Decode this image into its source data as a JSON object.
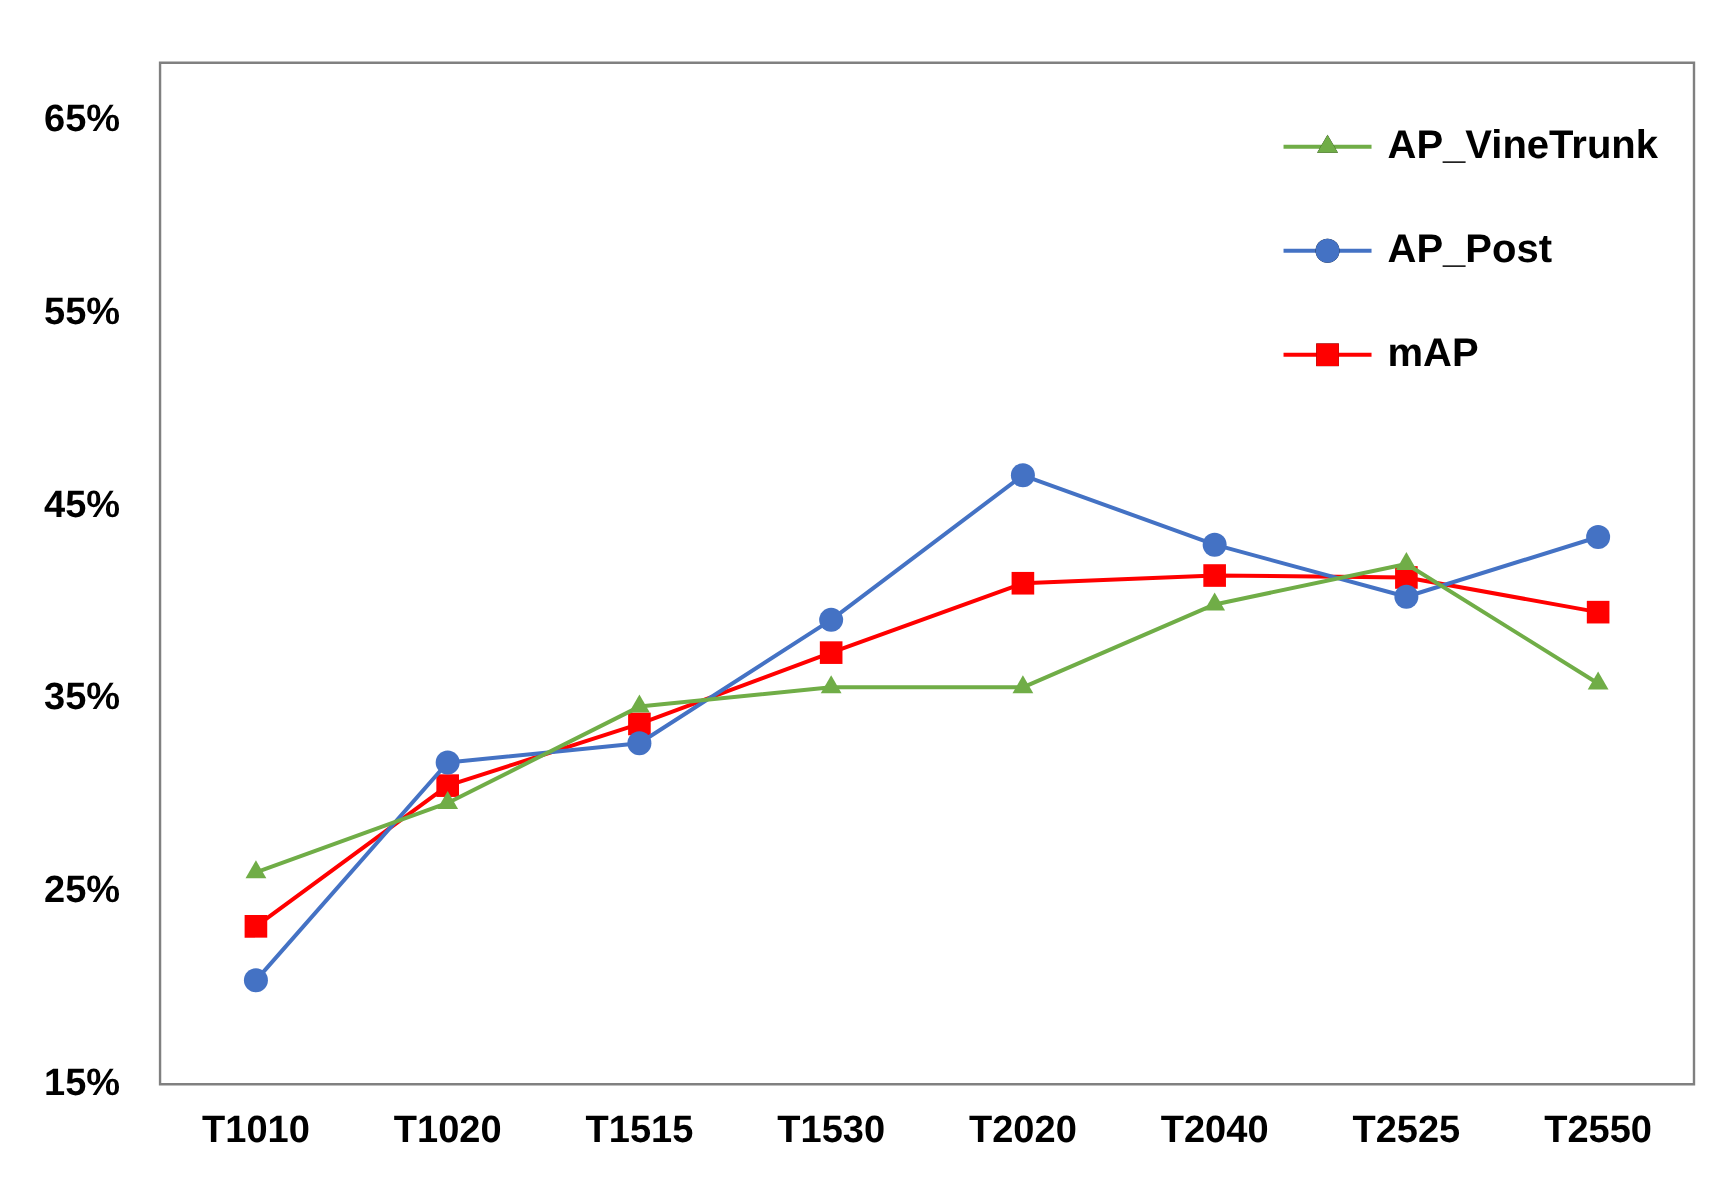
{
  "chart_data": {
    "type": "line",
    "categories": [
      "T1010",
      "T1020",
      "T1515",
      "T1530",
      "T2020",
      "T2040",
      "T2525",
      "T2550"
    ],
    "series": [
      {
        "name": "AP_VineTrunk",
        "color": "#70ad47",
        "marker": "triangle",
        "values": [
          26.0,
          29.6,
          34.6,
          35.6,
          35.6,
          39.9,
          42.0,
          35.8
        ]
      },
      {
        "name": "AP_Post",
        "color": "#4472c4",
        "marker": "circle",
        "values": [
          20.4,
          31.7,
          32.7,
          39.1,
          46.6,
          43.0,
          40.3,
          43.4
        ]
      },
      {
        "name": "mAP",
        "color": "#ff0000",
        "marker": "square",
        "values": [
          23.2,
          30.5,
          33.7,
          37.4,
          41.0,
          41.4,
          41.3,
          39.5
        ]
      }
    ],
    "ylim": [
      15,
      68
    ],
    "yticks": [
      {
        "value": 15,
        "label": "15%"
      },
      {
        "value": 25,
        "label": "25%"
      },
      {
        "value": 35,
        "label": "35%"
      },
      {
        "value": 45,
        "label": "45%"
      },
      {
        "value": 55,
        "label": "55%"
      },
      {
        "value": 65,
        "label": "65%"
      }
    ],
    "grid": false,
    "legend": "top right",
    "line_style": "solid"
  }
}
